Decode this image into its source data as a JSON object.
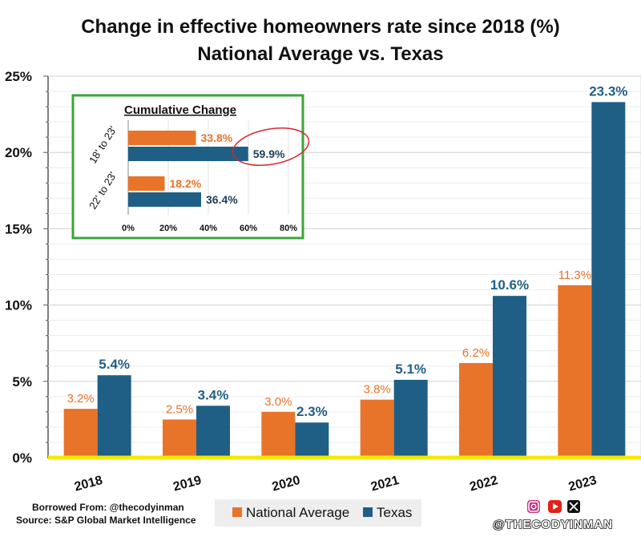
{
  "chart_data": {
    "type": "bar",
    "title": "Change in effective homeowners rate since 2018 (%)",
    "subtitle": "National Average vs. Texas",
    "categories": [
      "2018",
      "2019",
      "2020",
      "2021",
      "2022",
      "2023"
    ],
    "series": [
      {
        "name": "National Average",
        "color": "#e8742a",
        "values": [
          3.2,
          2.5,
          3.0,
          3.8,
          6.2,
          11.3
        ],
        "labels": [
          "3.2%",
          "2.5%",
          "3.0%",
          "3.8%",
          "6.2%",
          "11.3%"
        ]
      },
      {
        "name": "Texas",
        "color": "#1f5f86",
        "values": [
          5.4,
          3.4,
          2.3,
          5.1,
          10.6,
          23.3
        ],
        "labels": [
          "5.4%",
          "3.4%",
          "2.3%",
          "5.1%",
          "10.6%",
          "23.3%"
        ]
      }
    ],
    "ylim": [
      0,
      25
    ],
    "yticks": [
      0,
      5,
      10,
      15,
      20,
      25
    ],
    "ytick_labels": [
      "0%",
      "5%",
      "10%",
      "15%",
      "20%",
      "25%"
    ],
    "inset": {
      "type": "horizontal-bar",
      "title": "Cumulative Change",
      "categories": [
        "18' to 23'",
        "22' to 23'"
      ],
      "national": [
        33.8,
        18.2
      ],
      "texas": [
        59.9,
        36.4
      ],
      "national_labels": [
        "33.8%",
        "18.2%"
      ],
      "texas_labels": [
        "59.9%",
        "36.4%"
      ],
      "xlim": [
        0,
        80
      ],
      "xticks": [
        0,
        20,
        40,
        60,
        80
      ],
      "xtick_labels": [
        "0%",
        "20%",
        "40%",
        "60%",
        "80%"
      ],
      "highlight": "59.9%"
    }
  },
  "footer": {
    "borrowed": "Borrowed From: @thecodyinman",
    "source": "Source: S&P Global Market Intelligence",
    "legend_national": "National Average",
    "legend_texas": "Texas",
    "handle": "@THECODYINMAN"
  },
  "social_icons": [
    "instagram-icon",
    "youtube-icon",
    "x-icon"
  ],
  "colors": {
    "national": "#e8742a",
    "texas": "#1f5f86",
    "baseline": "#f2ea00",
    "inset_border": "#3aa53a",
    "highlight": "#d9262c"
  }
}
